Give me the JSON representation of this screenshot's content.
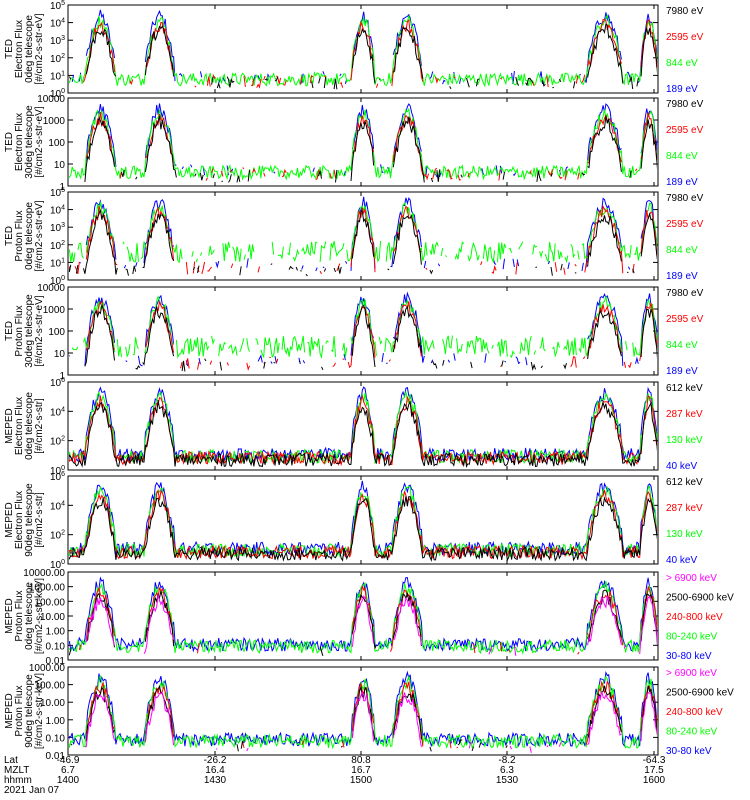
{
  "colors": {
    "black": "#000000",
    "red": "#ff0000",
    "green": "#00ff00",
    "blue": "#0000ff",
    "magenta": "#ff00ff"
  },
  "chart_data": [
    {
      "type": "line",
      "panel": 1,
      "ylabel": [
        "TED",
        "Electron Flux",
        "0deg telescope",
        "[#/cm2-s-str-eV]"
      ],
      "scale": "log",
      "ylim": [
        1,
        100000
      ],
      "tick_labels": [
        "10^0",
        "10^1",
        "10^2",
        "10^3",
        "10^4",
        "10^5"
      ],
      "legend": [
        {
          "label": "7980 eV",
          "color": "black"
        },
        {
          "label": "2595 eV",
          "color": "red"
        },
        {
          "label": "844 eV",
          "color": "green"
        },
        {
          "label": "189 eV",
          "color": "blue"
        }
      ]
    },
    {
      "type": "line",
      "panel": 2,
      "ylabel": [
        "TED",
        "Electron Flux",
        "30deg telescope",
        "[#/cm2-s-str-eV]"
      ],
      "scale": "log",
      "ylim": [
        1,
        10000
      ],
      "tick_labels": [
        "1",
        "10",
        "100",
        "1000",
        "10000"
      ],
      "legend": [
        {
          "label": "7980 eV",
          "color": "black"
        },
        {
          "label": "2595 eV",
          "color": "red"
        },
        {
          "label": "844 eV",
          "color": "green"
        },
        {
          "label": "189 eV",
          "color": "blue"
        }
      ]
    },
    {
      "type": "line",
      "panel": 3,
      "ylabel": [
        "TED",
        "Proton Flux",
        "0deg telescope",
        "[#/cm2-s-str-eV]"
      ],
      "scale": "log",
      "ylim": [
        1,
        100000
      ],
      "tick_labels": [
        "10^0",
        "10^1",
        "10^2",
        "10^3",
        "10^4",
        "10^5"
      ],
      "legend": [
        {
          "label": "7980 eV",
          "color": "black"
        },
        {
          "label": "2595 eV",
          "color": "red"
        },
        {
          "label": "844 eV",
          "color": "green"
        },
        {
          "label": "189 eV",
          "color": "blue"
        }
      ]
    },
    {
      "type": "line",
      "panel": 4,
      "ylabel": [
        "TED",
        "Proton Flux",
        "30deg telescope",
        "[#/cm2-s-str-eV]"
      ],
      "scale": "log",
      "ylim": [
        1,
        10000
      ],
      "tick_labels": [
        "1",
        "10",
        "100",
        "1000",
        "10000"
      ],
      "legend": [
        {
          "label": "7980 eV",
          "color": "black"
        },
        {
          "label": "2595 eV",
          "color": "red"
        },
        {
          "label": "844 eV",
          "color": "green"
        },
        {
          "label": "189 eV",
          "color": "blue"
        }
      ]
    },
    {
      "type": "line",
      "panel": 5,
      "ylabel": [
        "MEPED",
        "Electron Flux",
        "0deg telescope",
        "[#/cm2-s-str]"
      ],
      "scale": "log",
      "ylim": [
        1,
        1000000
      ],
      "tick_labels": [
        "10^0",
        "10^2",
        "10^4",
        "10^6"
      ],
      "legend": [
        {
          "label": "612 keV",
          "color": "black"
        },
        {
          "label": "287 keV",
          "color": "red"
        },
        {
          "label": "130 keV",
          "color": "green"
        },
        {
          "label": "40 keV",
          "color": "blue"
        }
      ]
    },
    {
      "type": "line",
      "panel": 6,
      "ylabel": [
        "MEPED",
        "Electron Flux",
        "90deg telescope",
        "[#/cm2-s-str]"
      ],
      "scale": "log",
      "ylim": [
        1,
        1000000
      ],
      "tick_labels": [
        "10^0",
        "10^2",
        "10^4",
        "10^6"
      ],
      "legend": [
        {
          "label": "612 keV",
          "color": "black"
        },
        {
          "label": "287 keV",
          "color": "red"
        },
        {
          "label": "130 keV",
          "color": "green"
        },
        {
          "label": "40 keV",
          "color": "blue"
        }
      ]
    },
    {
      "type": "line",
      "panel": 7,
      "ylabel": [
        "MEPED",
        "Proton Flux",
        "0deg telescope",
        "[#/cm2-s-str-keV]"
      ],
      "scale": "log",
      "ylim": [
        0.01,
        10000
      ],
      "tick_labels": [
        "0.01",
        "0.10",
        "1.00",
        "10.00",
        "100.00",
        "1000.00",
        "10000.00"
      ],
      "legend": [
        {
          "label": "> 6900 keV",
          "color": "magenta"
        },
        {
          "label": "2500-6900 keV",
          "color": "black"
        },
        {
          "label": "240-800 keV",
          "color": "red"
        },
        {
          "label": "80-240 keV",
          "color": "green"
        },
        {
          "label": "30-80 keV",
          "color": "blue"
        }
      ]
    },
    {
      "type": "line",
      "panel": 8,
      "ylabel": [
        "MEPED",
        "Proton Flux",
        "90deg telescope",
        "[#/cm2-s-str-keV]"
      ],
      "scale": "log",
      "ylim": [
        0.01,
        1000
      ],
      "tick_labels": [
        "0.01",
        "0.10",
        "1.00",
        "10.00",
        "100.00",
        "1000.00"
      ],
      "legend": [
        {
          "label": "> 6900 keV",
          "color": "magenta"
        },
        {
          "label": "2500-6900 keV",
          "color": "black"
        },
        {
          "label": "240-800 keV",
          "color": "red"
        },
        {
          "label": "80-240 keV",
          "color": "green"
        },
        {
          "label": "30-80 keV",
          "color": "blue"
        }
      ]
    }
  ],
  "x_axis": {
    "row_labels": [
      "Lat",
      "MZLT",
      "hhmm",
      "2021 Jan 07"
    ],
    "ticks": [
      {
        "lat": "-46.9",
        "mzlt": "6.7",
        "hhmm": "1400"
      },
      {
        "lat": "-26.2",
        "mzlt": "16.4",
        "hhmm": "1430"
      },
      {
        "lat": "80.8",
        "mzlt": "16.7",
        "hhmm": "1500"
      },
      {
        "lat": "-8.2",
        "mzlt": "6.3",
        "hhmm": "1530"
      },
      {
        "lat": "-64.3",
        "mzlt": "17.5",
        "hhmm": "1600"
      }
    ]
  }
}
